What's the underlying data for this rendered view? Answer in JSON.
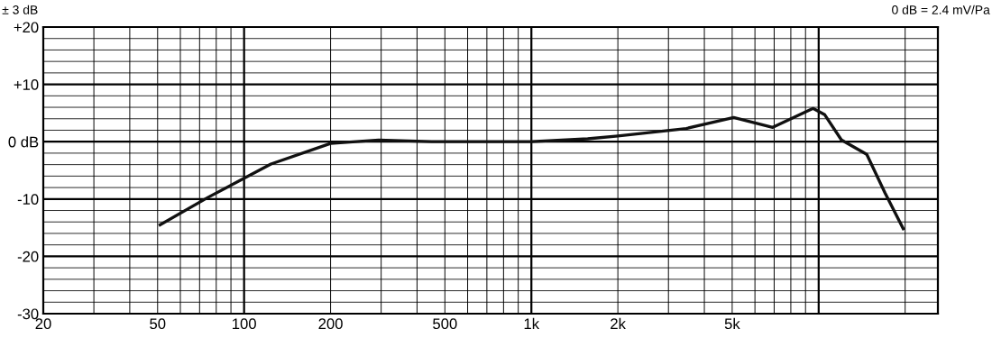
{
  "chart_data": {
    "type": "line",
    "annotations": [
      "± 3 dB",
      "0 dB = 2.4 mV/Pa"
    ],
    "x": [
      51,
      75,
      124,
      200,
      294,
      450,
      1000,
      1570,
      2000,
      3460,
      5060,
      6920,
      9560,
      10500,
      12000,
      14700,
      17000,
      19700
    ],
    "series": [
      {
        "color": "#111111",
        "values": [
          -14.5,
          -9.7,
          -3.9,
          -0.3,
          0.3,
          0,
          0,
          0.5,
          1,
          2.3,
          4.2,
          2.5,
          5.8,
          4.7,
          0.3,
          -2.2,
          -8.9,
          -15.2
        ]
      }
    ],
    "log": "x",
    "xlim": [
      20,
      26000
    ],
    "xticks": [
      20,
      50,
      100,
      200,
      500,
      {
        "value": 1000,
        "label": "1k"
      },
      {
        "value": 2000,
        "label": "2k"
      },
      {
        "value": 5000,
        "label": "5k"
      }
    ],
    "ylim": [
      -30,
      20
    ],
    "yticks": [
      -30,
      -20,
      -10,
      {
        "value": 0,
        "label": "0 dB"
      },
      {
        "value": 10,
        "label": "+10"
      },
      {
        "value": 20,
        "label": "+20"
      }
    ],
    "grid": true,
    "line_style": "solid",
    "marker": "none",
    "legend": false
  }
}
